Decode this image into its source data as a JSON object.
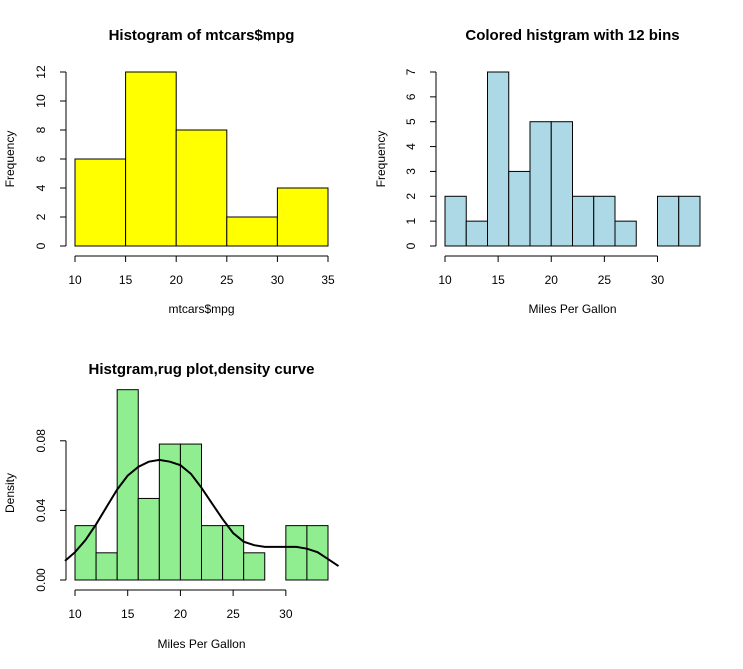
{
  "chart_data": [
    {
      "type": "bar",
      "title": "Histogram of mtcars$mpg",
      "xlabel": "mtcars$mpg",
      "ylabel": "Frequency",
      "fill": "#FFFF00",
      "bins": [
        {
          "from": 10,
          "to": 15,
          "value": 6
        },
        {
          "from": 15,
          "to": 20,
          "value": 12
        },
        {
          "from": 20,
          "to": 25,
          "value": 8
        },
        {
          "from": 25,
          "to": 30,
          "value": 2
        },
        {
          "from": 30,
          "to": 35,
          "value": 4
        }
      ],
      "xlim": [
        10,
        35
      ],
      "ylim": [
        0,
        12
      ],
      "xticks": [
        "10",
        "15",
        "20",
        "25",
        "30",
        "35"
      ],
      "yticks": [
        "0",
        "2",
        "4",
        "6",
        "8",
        "10",
        "12"
      ]
    },
    {
      "type": "bar",
      "title": "Colored histgram with 12 bins",
      "xlabel": "Miles Per Gallon",
      "ylabel": "Frequency",
      "fill": "#ADD8E6",
      "bins": [
        {
          "from": 10,
          "to": 12,
          "value": 2
        },
        {
          "from": 12,
          "to": 14,
          "value": 1
        },
        {
          "from": 14,
          "to": 16,
          "value": 7
        },
        {
          "from": 16,
          "to": 18,
          "value": 3
        },
        {
          "from": 18,
          "to": 20,
          "value": 5
        },
        {
          "from": 20,
          "to": 22,
          "value": 5
        },
        {
          "from": 22,
          "to": 24,
          "value": 2
        },
        {
          "from": 24,
          "to": 26,
          "value": 2
        },
        {
          "from": 26,
          "to": 28,
          "value": 1
        },
        {
          "from": 28,
          "to": 30,
          "value": 0
        },
        {
          "from": 30,
          "to": 32,
          "value": 2
        },
        {
          "from": 32,
          "to": 34,
          "value": 2
        }
      ],
      "xlim": [
        10,
        34
      ],
      "ylim": [
        0,
        7
      ],
      "xticks": [
        "10",
        "15",
        "20",
        "25",
        "30"
      ],
      "yticks": [
        "0",
        "1",
        "2",
        "3",
        "4",
        "5",
        "6",
        "7"
      ]
    },
    {
      "type": "bar",
      "title": "Histgram,rug plot,density curve",
      "xlabel": "Miles Per Gallon",
      "ylabel": "Density",
      "fill": "#90EE90",
      "bins": [
        {
          "from": 10,
          "to": 12,
          "value": 0.03125
        },
        {
          "from": 12,
          "to": 14,
          "value": 0.015625
        },
        {
          "from": 14,
          "to": 16,
          "value": 0.109375
        },
        {
          "from": 16,
          "to": 18,
          "value": 0.046875
        },
        {
          "from": 18,
          "to": 20,
          "value": 0.078125
        },
        {
          "from": 20,
          "to": 22,
          "value": 0.078125
        },
        {
          "from": 22,
          "to": 24,
          "value": 0.03125
        },
        {
          "from": 24,
          "to": 26,
          "value": 0.03125
        },
        {
          "from": 26,
          "to": 28,
          "value": 0.015625
        },
        {
          "from": 28,
          "to": 30,
          "value": 0
        },
        {
          "from": 30,
          "to": 32,
          "value": 0.03125
        },
        {
          "from": 32,
          "to": 34,
          "value": 0.03125
        }
      ],
      "density_curve": {
        "x": [
          9,
          10,
          11,
          12,
          13,
          14,
          15,
          16,
          17,
          18,
          19,
          20,
          21,
          22,
          23,
          24,
          25,
          26,
          27,
          28,
          29,
          30,
          31,
          32,
          33,
          34,
          35
        ],
        "y": [
          0.011,
          0.016,
          0.023,
          0.032,
          0.042,
          0.052,
          0.06,
          0.065,
          0.068,
          0.069,
          0.068,
          0.066,
          0.061,
          0.053,
          0.044,
          0.035,
          0.027,
          0.022,
          0.02,
          0.019,
          0.019,
          0.019,
          0.019,
          0.018,
          0.016,
          0.012,
          0.008
        ]
      },
      "xlim": [
        10,
        34
      ],
      "ylim": [
        0,
        0.1
      ],
      "xticks": [
        "10",
        "15",
        "20",
        "25",
        "30"
      ],
      "yticks": [
        "0.00",
        "0.04",
        "0.08"
      ]
    }
  ]
}
